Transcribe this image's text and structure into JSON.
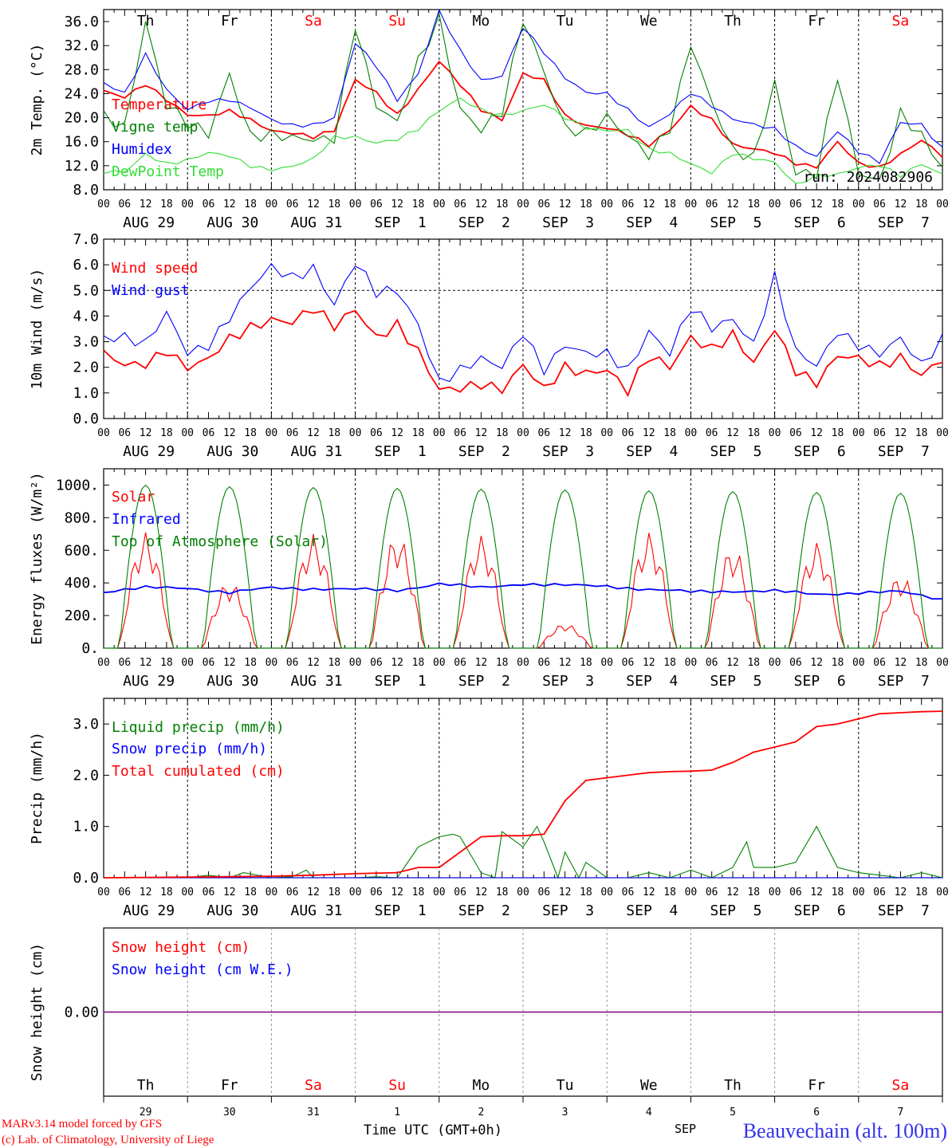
{
  "footer": {
    "model_line": "MARv3.14 model forced by GFS",
    "credit_line": "(c) Lab. of Climatology, University of Liege",
    "xaxis_title": "Time UTC (GMT+0h)",
    "station": "Beauvechain (alt. 100m)",
    "month": "SEP"
  },
  "time_axis": {
    "hours": [
      "00",
      "06",
      "12",
      "18"
    ],
    "dates": [
      "AUG 29",
      "AUG 30",
      "AUG 31",
      "SEP  1",
      "SEP  2",
      "SEP  3",
      "SEP  4",
      "SEP  5",
      "SEP  6",
      "SEP  7"
    ],
    "weekdays": [
      "Th",
      "Fr",
      "Sa",
      "Su",
      "Mo",
      "Tu",
      "We",
      "Th",
      "Fr",
      "Sa"
    ],
    "weekend_days": [
      2,
      3,
      9
    ],
    "day_numbers": [
      "29",
      "30",
      "31",
      "1",
      "2",
      "3",
      "4",
      "5",
      "6",
      "7"
    ]
  },
  "colors": {
    "red": "#ff0000",
    "green": "#008000",
    "blue": "#0000ff",
    "lightgreen": "#33dd33",
    "purple": "#800080",
    "weekend": "#ff0000"
  },
  "chart_data": [
    {
      "type": "line",
      "ylabel": "2m Temp. (°C)",
      "ylim": [
        8,
        38
      ],
      "yticks": [
        "8.0",
        "12.0",
        "16.0",
        "20.0",
        "24.0",
        "28.0",
        "32.0",
        "36.0"
      ],
      "annotation": "run: 2024082906",
      "x_unit": "hours since AUG 29 00 UTC",
      "series": [
        {
          "name": "Temperature",
          "color": "red",
          "x": [
            0,
            6,
            12,
            18,
            24,
            30,
            36,
            42,
            48,
            54,
            60,
            66,
            72,
            78,
            84,
            90,
            96,
            102,
            108,
            114,
            120,
            126,
            132,
            138,
            144,
            150,
            156,
            162,
            168,
            174,
            180,
            186,
            192,
            198,
            204,
            210,
            216,
            222,
            228,
            234,
            240
          ],
          "values": [
            24.3,
            23.2,
            25.6,
            23.2,
            20.6,
            20.2,
            20.9,
            19.6,
            18.0,
            17.6,
            16.7,
            17.7,
            26.3,
            24.3,
            20.6,
            24.6,
            29.2,
            25.5,
            21.5,
            19.8,
            27.3,
            26.0,
            20.2,
            18.8,
            18.5,
            17.2,
            15.2,
            17.8,
            22.0,
            19.8,
            15.5,
            14.6,
            14.0,
            12.5,
            12.0,
            16.0,
            12.2,
            11.5,
            14.0,
            16.5,
            13.7
          ]
        },
        {
          "name": "Vigne temp",
          "color": "green",
          "x": [
            0,
            6,
            12,
            18,
            24,
            30,
            36,
            42,
            48,
            54,
            60,
            66,
            72,
            78,
            84,
            90,
            96,
            102,
            108,
            114,
            120,
            126,
            132,
            138,
            144,
            150,
            156,
            162,
            168,
            174,
            180,
            186,
            192,
            198,
            204,
            210,
            216,
            222,
            228,
            234,
            240
          ],
          "values": [
            20.1,
            19.0,
            36.5,
            22.0,
            18.5,
            17.0,
            27.8,
            17.5,
            17.0,
            16.0,
            16.0,
            17.0,
            36.0,
            22.0,
            18.5,
            29.0,
            36.8,
            22.0,
            18.0,
            20.5,
            36.0,
            28.0,
            19.0,
            17.5,
            19.5,
            16.5,
            14.0,
            19.0,
            32.5,
            22.0,
            14.0,
            13.5,
            26.5,
            11.0,
            10.2,
            26.5,
            11.0,
            10.0,
            21.0,
            16.5,
            11.0
          ]
        },
        {
          "name": "Humidex",
          "color": "blue",
          "x": [
            0,
            6,
            12,
            18,
            24,
            30,
            36,
            42,
            48,
            54,
            60,
            66,
            72,
            78,
            84,
            90,
            96,
            102,
            108,
            114,
            120,
            126,
            132,
            138,
            144,
            150,
            156,
            162,
            168,
            174,
            180,
            186,
            192,
            198,
            204,
            210,
            216,
            222,
            228,
            234,
            240
          ],
          "values": [
            26.0,
            24.0,
            30.3,
            24.5,
            21.5,
            23.0,
            23.0,
            21.5,
            19.5,
            18.8,
            19.0,
            20.0,
            32.3,
            28.5,
            23.0,
            27.5,
            37.8,
            31.0,
            26.0,
            27.0,
            35.3,
            31.0,
            26.5,
            24.0,
            24.0,
            21.5,
            18.5,
            20.5,
            24.0,
            22.0,
            20.0,
            19.0,
            18.0,
            15.0,
            13.5,
            18.0,
            14.5,
            12.5,
            19.0,
            18.8,
            15.0
          ]
        },
        {
          "name": "DewPoint Temp",
          "color": "lightgreen",
          "x": [
            0,
            6,
            12,
            18,
            24,
            30,
            36,
            42,
            48,
            54,
            60,
            66,
            72,
            78,
            84,
            90,
            96,
            102,
            108,
            114,
            120,
            126,
            132,
            138,
            144,
            150,
            156,
            162,
            168,
            174,
            180,
            186,
            192,
            198,
            204,
            210,
            216,
            222,
            228,
            234,
            240
          ],
          "values": [
            10.8,
            10.8,
            14.0,
            12.5,
            13.0,
            14.0,
            13.5,
            12.0,
            11.5,
            12.0,
            13.0,
            16.5,
            16.8,
            16.0,
            16.5,
            18.0,
            21.0,
            23.2,
            21.5,
            20.5,
            21.0,
            22.0,
            20.0,
            18.5,
            18.0,
            17.8,
            14.5,
            14.0,
            12.5,
            11.0,
            14.0,
            13.0,
            12.5,
            9.0,
            10.5,
            10.5,
            11.5,
            12.0,
            10.5,
            12.5,
            10.5
          ]
        }
      ]
    },
    {
      "type": "line",
      "ylabel": "10m Wind (m/s)",
      "ylim": [
        0,
        7
      ],
      "yticks": [
        "0.0",
        "1.0",
        "2.0",
        "3.0",
        "4.0",
        "5.0",
        "6.0",
        "7.0"
      ],
      "reference_line": 5.0,
      "x_unit": "hours since AUG 29 00 UTC",
      "series": [
        {
          "name": "Wind speed",
          "color": "red",
          "x": [
            0,
            6,
            12,
            18,
            24,
            30,
            36,
            42,
            48,
            54,
            60,
            66,
            72,
            78,
            84,
            90,
            96,
            102,
            108,
            114,
            120,
            126,
            132,
            138,
            144,
            150,
            156,
            162,
            168,
            174,
            180,
            186,
            192,
            198,
            204,
            210,
            216,
            222,
            228,
            234,
            240
          ],
          "values": [
            2.4,
            2.0,
            2.2,
            2.8,
            2.0,
            2.2,
            3.0,
            3.6,
            4.0,
            3.8,
            4.2,
            3.5,
            4.3,
            3.3,
            3.7,
            2.5,
            1.0,
            1.2,
            1.5,
            1.2,
            2.0,
            1.0,
            2.0,
            1.9,
            2.0,
            1.0,
            2.3,
            2.0,
            3.3,
            2.8,
            3.2,
            2.0,
            3.5,
            2.0,
            1.5,
            2.4,
            2.2,
            2.0,
            2.5,
            1.8,
            2.3
          ]
        },
        {
          "name": "Wind gust",
          "color": "blue",
          "x": [
            0,
            6,
            12,
            18,
            24,
            30,
            36,
            42,
            48,
            54,
            60,
            66,
            72,
            78,
            84,
            90,
            96,
            102,
            108,
            114,
            120,
            126,
            132,
            138,
            144,
            150,
            156,
            162,
            168,
            174,
            180,
            186,
            192,
            198,
            204,
            210,
            216,
            222,
            228,
            234,
            240
          ],
          "values": [
            3.3,
            3.2,
            2.8,
            4.0,
            2.6,
            3.0,
            4.0,
            5.0,
            5.8,
            5.5,
            6.0,
            4.5,
            6.0,
            4.8,
            5.0,
            3.8,
            1.5,
            1.8,
            2.2,
            2.0,
            3.5,
            2.0,
            2.8,
            2.4,
            2.5,
            2.0,
            3.5,
            2.5,
            4.2,
            3.5,
            4.0,
            3.0,
            5.5,
            2.5,
            2.0,
            3.5,
            3.0,
            2.5,
            3.0,
            2.0,
            3.2
          ]
        }
      ]
    },
    {
      "type": "line",
      "ylabel": "Energy fluxes (W/m²)",
      "ylim": [
        0,
        1100
      ],
      "yticks": [
        "0.",
        "200.",
        "400.",
        "600.",
        "800.",
        "1000."
      ],
      "x_unit": "hours since AUG 29 00 UTC",
      "daily_peaks": {
        "toa": [
          1000,
          990,
          985,
          980,
          975,
          970,
          965,
          960,
          955,
          950
        ],
        "solar": [
          710,
          410,
          700,
          700,
          690,
          150,
          710,
          620,
          650,
          450
        ]
      },
      "series": [
        {
          "name": "Solar",
          "color": "red"
        },
        {
          "name": "Infrared",
          "color": "blue",
          "x": [
            0,
            12,
            24,
            36,
            48,
            60,
            72,
            84,
            96,
            108,
            120,
            132,
            144,
            156,
            168,
            180,
            192,
            204,
            216,
            228,
            240
          ],
          "values": [
            345,
            370,
            370,
            340,
            370,
            365,
            360,
            355,
            395,
            370,
            395,
            385,
            380,
            360,
            345,
            350,
            350,
            330,
            340,
            345,
            300
          ]
        },
        {
          "name": "Top of Atmosphere (Solar)",
          "color": "green"
        }
      ]
    },
    {
      "type": "line",
      "ylabel": "Precip (mm/h)",
      "ylim": [
        0,
        3.5
      ],
      "yticks": [
        "0.0",
        "1.0",
        "2.0",
        "3.0"
      ],
      "x_unit": "hours since AUG 29 00 UTC",
      "series": [
        {
          "name": "Liquid precip (mm/h)",
          "color": "green",
          "x": [
            0,
            24,
            30,
            36,
            40,
            48,
            54,
            58,
            60,
            66,
            72,
            78,
            84,
            90,
            96,
            100,
            102,
            108,
            112,
            114,
            120,
            124,
            126,
            130,
            132,
            136,
            138,
            144,
            150,
            156,
            162,
            168,
            174,
            180,
            184,
            186,
            192,
            198,
            204,
            210,
            216,
            222,
            228,
            234,
            240
          ],
          "values": [
            0,
            0,
            0.05,
            0,
            0.1,
            0,
            0.02,
            0.15,
            0,
            0,
            0,
            0.02,
            0,
            0.6,
            0.8,
            0.85,
            0.8,
            0.1,
            0,
            0.9,
            0.6,
            1.0,
            0.7,
            0,
            0.5,
            0,
            0.3,
            0,
            0,
            0.1,
            0,
            0.15,
            0,
            0.2,
            0.7,
            0.2,
            0.2,
            0.3,
            1.0,
            0.2,
            0.1,
            0.05,
            0,
            0.1,
            0
          ]
        },
        {
          "name": "Snow precip (mm/h)",
          "color": "blue",
          "x": [
            0,
            240
          ],
          "values": [
            0,
            0
          ]
        },
        {
          "name": "Total cumulated (cm)",
          "color": "red",
          "x": [
            0,
            36,
            48,
            60,
            72,
            84,
            90,
            96,
            102,
            108,
            114,
            120,
            126,
            132,
            138,
            144,
            150,
            156,
            162,
            168,
            174,
            180,
            186,
            192,
            198,
            204,
            210,
            216,
            222,
            228,
            234,
            240
          ],
          "values": [
            0,
            0.02,
            0.03,
            0.05,
            0.08,
            0.1,
            0.2,
            0.2,
            0.5,
            0.8,
            0.82,
            0.82,
            0.85,
            1.5,
            1.9,
            1.95,
            2.0,
            2.05,
            2.07,
            2.08,
            2.1,
            2.25,
            2.45,
            2.55,
            2.65,
            2.95,
            3.0,
            3.1,
            3.2,
            3.22,
            3.24,
            3.25
          ]
        }
      ]
    },
    {
      "type": "line",
      "ylabel": "Snow height (cm)",
      "ylim": [
        -1,
        1
      ],
      "yticks": [
        "0.00"
      ],
      "x_unit": "hours since AUG 29 00 UTC",
      "series": [
        {
          "name": "Snow height (cm)",
          "color": "red",
          "x": [
            0,
            240
          ],
          "values": [
            0,
            0
          ]
        },
        {
          "name": "Snow height (cm W.E.)",
          "color": "blue",
          "x": [
            0,
            240
          ],
          "values": [
            0,
            0
          ]
        }
      ]
    }
  ]
}
